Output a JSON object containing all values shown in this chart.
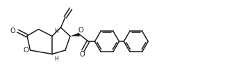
{
  "bg_color": "#ffffff",
  "line_color": "#1a1a1a",
  "line_width": 1.1,
  "fig_width": 3.24,
  "fig_height": 1.22,
  "dpi": 100,
  "xlim": [
    0,
    3.24
  ],
  "ylim": [
    0,
    1.22
  ]
}
